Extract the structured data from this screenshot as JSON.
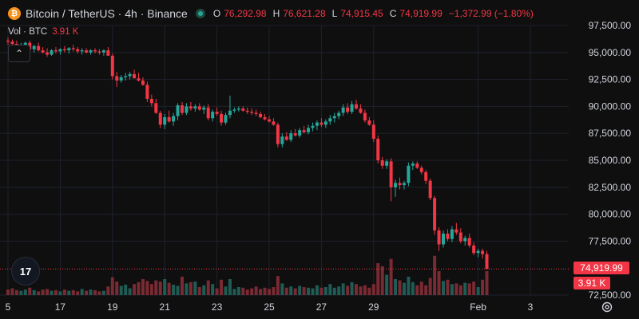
{
  "header": {
    "title": "Bitcoin / TetherUS · 4h · Binance",
    "ohlc": [
      {
        "key": "O",
        "value": "76,292.98"
      },
      {
        "key": "H",
        "value": "76,621.28"
      },
      {
        "key": "L",
        "value": "74,915.45"
      },
      {
        "key": "C",
        "value": "74,919.99"
      },
      {
        "key": "",
        "value": "−1,372.99 (−1.80%)"
      }
    ]
  },
  "volume_row": {
    "label": "Vol · BTC",
    "value": "3.91 K"
  },
  "current_price_label": "74,919.99",
  "current_volume_label": "3.91 K",
  "logo_text": "17",
  "colors": {
    "up": "#26a69a",
    "down": "#f23645",
    "background": "#0f0f0f",
    "grid": "#1e222d",
    "text": "#d1d4dc"
  },
  "chart_data": {
    "type": "candlestick",
    "y_ticks": [
      "97,500.00",
      "95,000.00",
      "92,500.00",
      "90,000.00",
      "87,500.00",
      "85,000.00",
      "82,500.00",
      "80,000.00",
      "77,500.00",
      "72,500.00"
    ],
    "ylim": [
      72500,
      97500
    ],
    "x_ticks": [
      {
        "label": "5",
        "index": 0
      },
      {
        "label": "17",
        "index": 12
      },
      {
        "label": "19",
        "index": 24
      },
      {
        "label": "21",
        "index": 36
      },
      {
        "label": "23",
        "index": 48
      },
      {
        "label": "25",
        "index": 60
      },
      {
        "label": "27",
        "index": 72
      },
      {
        "label": "29",
        "index": 84
      },
      {
        "label": "Feb",
        "index": 108
      },
      {
        "label": "3",
        "index": 120
      }
    ],
    "candles": [
      [
        96100,
        96400,
        95700,
        96000
      ],
      [
        96000,
        96200,
        95600,
        95800
      ],
      [
        95800,
        96100,
        95400,
        95500
      ],
      [
        95500,
        95900,
        95300,
        95700
      ],
      [
        95700,
        96000,
        95500,
        95900
      ],
      [
        95900,
        96100,
        95200,
        95300
      ],
      [
        95300,
        95700,
        95000,
        95600
      ],
      [
        95600,
        95900,
        95100,
        95200
      ],
      [
        95200,
        95500,
        94900,
        95000
      ],
      [
        95000,
        95400,
        94600,
        94800
      ],
      [
        94800,
        95300,
        94700,
        95200
      ],
      [
        95200,
        95500,
        94900,
        95100
      ],
      [
        95100,
        95400,
        94800,
        95300
      ],
      [
        95300,
        95600,
        95000,
        95200
      ],
      [
        95200,
        95500,
        94900,
        95400
      ],
      [
        95400,
        95700,
        95100,
        95300
      ],
      [
        95300,
        95500,
        94900,
        95100
      ],
      [
        95100,
        95400,
        94800,
        95200
      ],
      [
        95200,
        95400,
        94900,
        95000
      ],
      [
        95000,
        95300,
        94800,
        95200
      ],
      [
        95200,
        95400,
        94900,
        95100
      ],
      [
        95100,
        95300,
        94800,
        95000
      ],
      [
        95000,
        95300,
        94700,
        95200
      ],
      [
        95200,
        95500,
        94900,
        94700
      ],
      [
        94700,
        94900,
        92500,
        92800
      ],
      [
        92800,
        93200,
        91800,
        92400
      ],
      [
        92400,
        92900,
        92200,
        92700
      ],
      [
        92700,
        93100,
        92400,
        92800
      ],
      [
        92800,
        93200,
        92500,
        93000
      ],
      [
        93000,
        93400,
        92700,
        92600
      ],
      [
        92600,
        93100,
        92300,
        92400
      ],
      [
        92400,
        92700,
        91900,
        92000
      ],
      [
        92000,
        92300,
        90400,
        90700
      ],
      [
        90700,
        91100,
        90000,
        90300
      ],
      [
        90300,
        90700,
        89300,
        89400
      ],
      [
        89400,
        89600,
        88000,
        88300
      ],
      [
        88300,
        89300,
        87900,
        89000
      ],
      [
        89000,
        89600,
        88500,
        88600
      ],
      [
        88600,
        89400,
        88200,
        89100
      ],
      [
        89100,
        90300,
        88700,
        90100
      ],
      [
        90100,
        90400,
        89200,
        89400
      ],
      [
        89400,
        90300,
        89200,
        90000
      ],
      [
        90000,
        90400,
        89600,
        89800
      ],
      [
        89800,
        90200,
        89500,
        90000
      ],
      [
        90000,
        90300,
        89600,
        89700
      ],
      [
        89700,
        90100,
        89300,
        89900
      ],
      [
        89900,
        90200,
        88700,
        88900
      ],
      [
        88900,
        89700,
        88600,
        89500
      ],
      [
        89500,
        89900,
        89100,
        89300
      ],
      [
        89300,
        89600,
        88200,
        88500
      ],
      [
        88500,
        89400,
        88300,
        89200
      ],
      [
        89200,
        91000,
        88900,
        89600
      ],
      [
        89600,
        89900,
        89400,
        89700
      ],
      [
        89700,
        90000,
        89500,
        89800
      ],
      [
        89800,
        90000,
        89500,
        89600
      ],
      [
        89600,
        89900,
        89300,
        89500
      ],
      [
        89500,
        89800,
        89200,
        89400
      ],
      [
        89400,
        89700,
        89100,
        89300
      ],
      [
        89300,
        89500,
        88900,
        89000
      ],
      [
        89000,
        89300,
        88700,
        88800
      ],
      [
        88800,
        89100,
        88500,
        88600
      ],
      [
        88600,
        88900,
        88200,
        88300
      ],
      [
        88300,
        88500,
        86200,
        86500
      ],
      [
        86500,
        87500,
        86200,
        87200
      ],
      [
        87200,
        87600,
        86800,
        86900
      ],
      [
        86900,
        87800,
        86700,
        87500
      ],
      [
        87500,
        87900,
        87200,
        87300
      ],
      [
        87300,
        88000,
        87100,
        87800
      ],
      [
        87800,
        88200,
        87500,
        87600
      ],
      [
        87600,
        88300,
        87400,
        88000
      ],
      [
        88000,
        88500,
        87700,
        88200
      ],
      [
        88200,
        88700,
        87800,
        88500
      ],
      [
        88500,
        88900,
        88100,
        88300
      ],
      [
        88300,
        88800,
        88000,
        88600
      ],
      [
        88600,
        89200,
        88300,
        88900
      ],
      [
        88900,
        89400,
        88500,
        89100
      ],
      [
        89100,
        89600,
        88800,
        89400
      ],
      [
        89400,
        90200,
        89100,
        89900
      ],
      [
        89900,
        90300,
        89300,
        89500
      ],
      [
        89500,
        90500,
        89300,
        90200
      ],
      [
        90200,
        90600,
        89700,
        89800
      ],
      [
        89800,
        90200,
        89300,
        89400
      ],
      [
        89400,
        89700,
        88500,
        88700
      ],
      [
        88700,
        89000,
        88200,
        88300
      ],
      [
        88300,
        88700,
        86700,
        87000
      ],
      [
        87000,
        87300,
        84700,
        85000
      ],
      [
        85000,
        85300,
        84200,
        84500
      ],
      [
        84500,
        85100,
        84200,
        84900
      ],
      [
        84900,
        85200,
        81200,
        82500
      ],
      [
        82500,
        83200,
        81600,
        82900
      ],
      [
        82900,
        83400,
        82300,
        82700
      ],
      [
        82700,
        83100,
        82300,
        82900
      ],
      [
        82900,
        84800,
        82600,
        84500
      ],
      [
        84500,
        84900,
        84100,
        84700
      ],
      [
        84700,
        84900,
        84200,
        84300
      ],
      [
        84300,
        84500,
        83700,
        83900
      ],
      [
        83900,
        84100,
        82800,
        83100
      ],
      [
        83100,
        83300,
        81300,
        81500
      ],
      [
        81500,
        81700,
        78100,
        78500
      ],
      [
        78500,
        78800,
        76600,
        77200
      ],
      [
        77200,
        78500,
        76900,
        78200
      ],
      [
        78200,
        78600,
        77500,
        77700
      ],
      [
        77700,
        78900,
        77400,
        78600
      ],
      [
        78600,
        79200,
        78100,
        78300
      ],
      [
        78300,
        78700,
        77300,
        77500
      ],
      [
        77500,
        78000,
        77100,
        77800
      ],
      [
        77800,
        78200,
        76900,
        77100
      ],
      [
        77100,
        77400,
        76200,
        76400
      ],
      [
        76400,
        76800,
        76000,
        76600
      ],
      [
        76600,
        76800,
        75900,
        76300
      ],
      [
        76300,
        76600,
        74900,
        74920
      ]
    ],
    "volumes": [
      0.9,
      1.1,
      0.8,
      0.7,
      0.9,
      1.2,
      0.8,
      0.6,
      0.9,
      1.0,
      0.7,
      0.8,
      0.6,
      0.9,
      0.7,
      0.8,
      0.6,
      1.0,
      0.7,
      0.9,
      0.8,
      0.6,
      0.7,
      1.4,
      2.9,
      2.2,
      1.5,
      1.7,
      1.1,
      1.8,
      2.1,
      2.6,
      2.3,
      1.8,
      2.4,
      2.2,
      2.6,
      2.0,
      1.7,
      1.5,
      3.0,
      1.9,
      2.1,
      2.2,
      1.3,
      1.6,
      2.4,
      1.8,
      1.1,
      2.5,
      1.4,
      2.6,
      1.0,
      1.3,
      1.2,
      0.9,
      1.1,
      1.4,
      1.0,
      1.2,
      1.0,
      1.3,
      3.1,
      1.9,
      1.2,
      1.4,
      1.1,
      1.5,
      1.3,
      1.2,
      1.1,
      1.6,
      1.2,
      1.3,
      1.8,
      1.2,
      1.4,
      1.9,
      1.5,
      2.1,
      1.8,
      1.4,
      1.6,
      1.2,
      1.8,
      5.2,
      4.7,
      3.3,
      5.9,
      2.6,
      2.4,
      2.0,
      3.0,
      2.1,
      1.6,
      2.2,
      1.6,
      2.8,
      6.4,
      3.9,
      2.3,
      2.5,
      1.8,
      1.9,
      1.6,
      2.0,
      1.9,
      2.2,
      1.3,
      2.5,
      3.91
    ]
  }
}
